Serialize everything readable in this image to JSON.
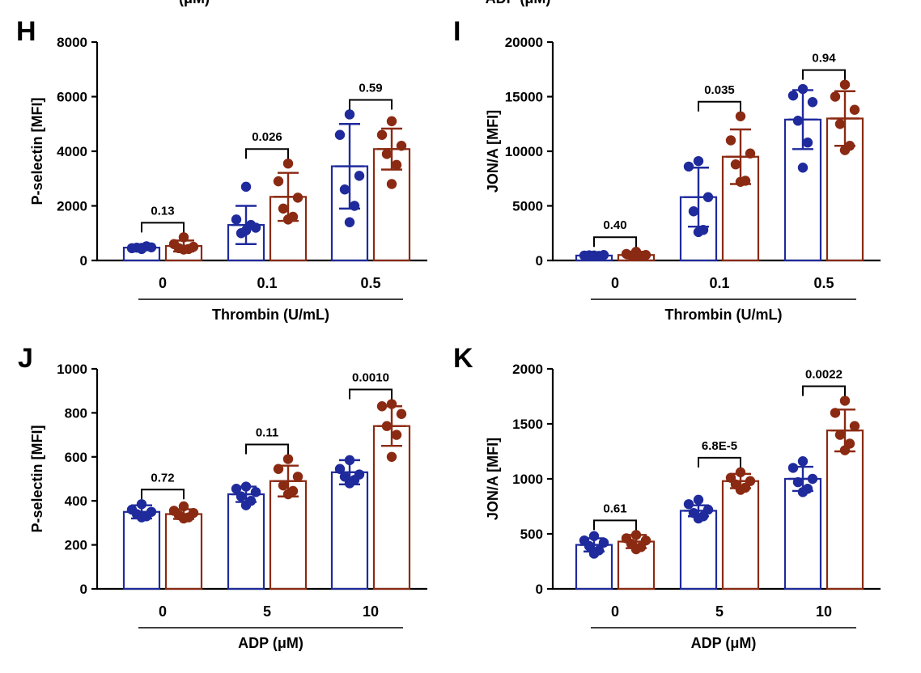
{
  "top_text": {
    "left": "(μM)",
    "right": "ADP (μM)"
  },
  "colors": {
    "group1": "#1f2a9c",
    "group2": "#8b2a12"
  },
  "chart_data": [
    {
      "panel": "H",
      "type": "bar",
      "ylabel": "P-selectin [MFI]",
      "xlabel": "Thrombin (U/mL)",
      "categories": [
        "0",
        "0.1",
        "0.5"
      ],
      "ylim": [
        0,
        8000
      ],
      "yticks": [
        0,
        2000,
        4000,
        6000,
        8000
      ],
      "series": [
        {
          "values": [
            470,
            1300,
            3450
          ],
          "sd": [
            90,
            700,
            1550
          ],
          "points": [
            [
              420,
              450,
              480,
              470,
              520,
              460
            ],
            [
              2700,
              1500,
              1200,
              1000,
              1300,
              1100
            ],
            [
              5350,
              4600,
              3100,
              2600,
              2000,
              1400
            ]
          ]
        },
        {
          "values": [
            530,
            2330,
            4080
          ],
          "sd": [
            200,
            880,
            750
          ],
          "points": [
            [
              850,
              600,
              500,
              450,
              420,
              400
            ],
            [
              3550,
              2900,
              2300,
              1900,
              1600,
              1500
            ],
            [
              5100,
              4600,
              4200,
              3900,
              3500,
              2800
            ]
          ]
        }
      ],
      "pvalues": [
        "0.13",
        "0.026",
        "0.59"
      ]
    },
    {
      "panel": "I",
      "type": "bar",
      "ylabel": "JON/A [MFI]",
      "xlabel": "Thrombin (U/mL)",
      "categories": [
        "0",
        "0.1",
        "0.5"
      ],
      "ylim": [
        0,
        20000
      ],
      "yticks": [
        0,
        5000,
        10000,
        15000,
        20000
      ],
      "series": [
        {
          "values": [
            450,
            5800,
            12900
          ],
          "sd": [
            150,
            2700,
            2700
          ],
          "points": [
            [
              400,
              450,
              500,
              480,
              420,
              460
            ],
            [
              9100,
              8600,
              5800,
              4500,
              2800,
              2600
            ],
            [
              15700,
              15100,
              14500,
              12800,
              10800,
              8500
            ]
          ]
        },
        {
          "values": [
            500,
            9500,
            13000
          ],
          "sd": [
            300,
            2500,
            2500
          ],
          "points": [
            [
              800,
              600,
              500,
              450,
              400,
              420
            ],
            [
              13200,
              11000,
              9800,
              8800,
              7300,
              7200
            ],
            [
              16100,
              15000,
              13800,
              12500,
              10500,
              10100
            ]
          ]
        }
      ],
      "pvalues": [
        "0.40",
        "0.035",
        "0.94"
      ]
    },
    {
      "panel": "J",
      "type": "bar",
      "ylabel": "P-selectin [MFI]",
      "xlabel": "ADP (μM)",
      "categories": [
        "0",
        "5",
        "10"
      ],
      "ylim": [
        0,
        1000
      ],
      "yticks": [
        0,
        200,
        400,
        600,
        800,
        1000
      ],
      "series": [
        {
          "values": [
            350,
            430,
            530
          ],
          "sd": [
            30,
            35,
            55
          ],
          "points": [
            [
              385,
              360,
              350,
              340,
              330,
              325
            ],
            [
              465,
              455,
              440,
              420,
              400,
              380
            ],
            [
              585,
              545,
              520,
              510,
              495,
              480
            ]
          ]
        },
        {
          "values": [
            340,
            490,
            740
          ],
          "sd": [
            22,
            70,
            90
          ],
          "points": [
            [
              375,
              355,
              345,
              335,
              325,
              320
            ],
            [
              590,
              545,
              510,
              470,
              445,
              430
            ],
            [
              840,
              830,
              795,
              740,
              700,
              600
            ]
          ]
        }
      ],
      "pvalues": [
        "0.72",
        "0.11",
        "0.0010"
      ]
    },
    {
      "panel": "K",
      "type": "bar",
      "ylabel": "JON/A [MFI]",
      "xlabel": "ADP (μM)",
      "categories": [
        "0",
        "5",
        "10"
      ],
      "ylim": [
        0,
        2000
      ],
      "yticks": [
        0,
        500,
        1000,
        1500,
        2000
      ],
      "series": [
        {
          "values": [
            400,
            710,
            1000
          ],
          "sd": [
            60,
            50,
            110
          ],
          "points": [
            [
              480,
              440,
              420,
              390,
              350,
              320
            ],
            [
              810,
              770,
              720,
              690,
              660,
              640
            ],
            [
              1160,
              1100,
              1000,
              970,
              910,
              880
            ]
          ]
        },
        {
          "values": [
            430,
            980,
            1440
          ],
          "sd": [
            60,
            65,
            190
          ],
          "points": [
            [
              490,
              460,
              440,
              410,
              380,
              360
            ],
            [
              1060,
              1010,
              980,
              950,
              920,
              900
            ],
            [
              1710,
              1600,
              1480,
              1400,
              1320,
              1260
            ]
          ]
        }
      ],
      "pvalues": [
        "0.61",
        "6.8E-5",
        "0.0022"
      ]
    }
  ]
}
